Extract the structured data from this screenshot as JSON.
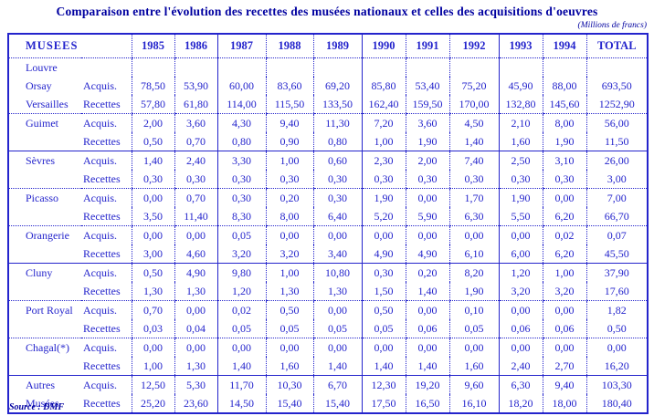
{
  "title": "Comparaison entre l'évolution des recettes des musées nationaux et celles des acquisitions d'oeuvres",
  "unit_note": "(Millions de francs)",
  "source_note": "Source : DMF",
  "colors": {
    "title_text": "#0000a0",
    "table_text": "#2424cc",
    "border": "#2424cc",
    "background": "#ffffff"
  },
  "chart_data": {
    "type": "table",
    "title": "Comparaison entre l'évolution des recettes des musées nationaux et celles des acquisitions d'oeuvres",
    "unit": "(Millions de francs)",
    "source": "Source : DMF",
    "header": {
      "musees": "MUSEES",
      "years": [
        "1985",
        "1986",
        "1987",
        "1988",
        "1989",
        "1990",
        "1991",
        "1992",
        "1993",
        "1994"
      ],
      "total": "TOTAL"
    },
    "row_labels": {
      "acquisitions": "Acquis.",
      "recettes": "Recettes"
    },
    "groups": [
      {
        "names": [
          "Louvre",
          "Orsay",
          "Versailles"
        ],
        "acquis": [
          "78,50",
          "53,90",
          "60,00",
          "83,60",
          "69,20",
          "85,80",
          "53,40",
          "75,20",
          "45,90",
          "88,00"
        ],
        "acquis_total": "693,50",
        "recettes": [
          "57,80",
          "61,80",
          "114,00",
          "115,50",
          "133,50",
          "162,40",
          "159,50",
          "170,00",
          "132,80",
          "145,60"
        ],
        "recettes_total": "1252,90",
        "separator_after": "dotted"
      },
      {
        "names": [
          "Guimet"
        ],
        "acquis": [
          "2,00",
          "3,60",
          "4,30",
          "9,40",
          "11,30",
          "7,20",
          "3,60",
          "4,50",
          "2,10",
          "8,00"
        ],
        "acquis_total": "56,00",
        "recettes": [
          "0,50",
          "0,70",
          "0,80",
          "0,90",
          "0,80",
          "1,00",
          "1,90",
          "1,40",
          "1,60",
          "1,90"
        ],
        "recettes_total": "11,50",
        "separator_after": "solid"
      },
      {
        "names": [
          "Sèvres"
        ],
        "acquis": [
          "1,40",
          "2,40",
          "3,30",
          "1,00",
          "0,60",
          "2,30",
          "2,00",
          "7,40",
          "2,50",
          "3,10"
        ],
        "acquis_total": "26,00",
        "recettes": [
          "0,30",
          "0,30",
          "0,30",
          "0,30",
          "0,30",
          "0,30",
          "0,30",
          "0,30",
          "0,30",
          "0,30"
        ],
        "recettes_total": "3,00",
        "separator_after": "dotted"
      },
      {
        "names": [
          "Picasso"
        ],
        "acquis": [
          "0,00",
          "0,70",
          "0,30",
          "0,20",
          "0,30",
          "1,90",
          "0,00",
          "1,70",
          "1,90",
          "0,00"
        ],
        "acquis_total": "7,00",
        "recettes": [
          "3,50",
          "11,40",
          "8,30",
          "8,00",
          "6,40",
          "5,20",
          "5,90",
          "6,30",
          "5,50",
          "6,20"
        ],
        "recettes_total": "66,70",
        "separator_after": "dotted"
      },
      {
        "names": [
          "Orangerie"
        ],
        "acquis": [
          "0,00",
          "0,00",
          "0,05",
          "0,00",
          "0,00",
          "0,00",
          "0,00",
          "0,00",
          "0,00",
          "0,02"
        ],
        "acquis_total": "0,07",
        "recettes": [
          "3,00",
          "4,60",
          "3,20",
          "3,20",
          "3,40",
          "4,90",
          "4,90",
          "6,10",
          "6,00",
          "6,20"
        ],
        "recettes_total": "45,50",
        "separator_after": "solid"
      },
      {
        "names": [
          "Cluny"
        ],
        "acquis": [
          "0,50",
          "4,90",
          "9,80",
          "1,00",
          "10,80",
          "0,30",
          "0,20",
          "8,20",
          "1,20",
          "1,00"
        ],
        "acquis_total": "37,90",
        "recettes": [
          "1,30",
          "1,30",
          "1,20",
          "1,30",
          "1,30",
          "1,50",
          "1,40",
          "1,90",
          "3,20",
          "3,20"
        ],
        "recettes_total": "17,60",
        "separator_after": "dotted"
      },
      {
        "names": [
          "Port Royal"
        ],
        "acquis": [
          "0,70",
          "0,00",
          "0,02",
          "0,50",
          "0,00",
          "0,50",
          "0,00",
          "0,10",
          "0,00",
          "0,00"
        ],
        "acquis_total": "1,82",
        "recettes": [
          "0,03",
          "0,04",
          "0,05",
          "0,05",
          "0,05",
          "0,05",
          "0,06",
          "0,05",
          "0,06",
          "0,06"
        ],
        "recettes_total": "0,50",
        "separator_after": "dotted"
      },
      {
        "names": [
          "Chagal(*)"
        ],
        "acquis": [
          "0,00",
          "0,00",
          "0,00",
          "0,00",
          "0,00",
          "0,00",
          "0,00",
          "0,00",
          "0,00",
          "0,00"
        ],
        "acquis_total": "0,00",
        "recettes": [
          "1,00",
          "1,30",
          "1,40",
          "1,60",
          "1,40",
          "1,40",
          "1,40",
          "1,60",
          "2,40",
          "2,70"
        ],
        "recettes_total": "16,20",
        "separator_after": "solid"
      },
      {
        "names": [
          "Autres",
          "Musées"
        ],
        "acquis": [
          "12,50",
          "5,30",
          "11,70",
          "10,30",
          "6,70",
          "12,30",
          "19,20",
          "9,60",
          "6,30",
          "9,40"
        ],
        "acquis_total": "103,30",
        "recettes": [
          "25,20",
          "23,60",
          "14,50",
          "15,40",
          "15,40",
          "17,50",
          "16,50",
          "16,10",
          "18,20",
          "18,00"
        ],
        "recettes_total": "180,40",
        "separator_after": "none"
      }
    ]
  }
}
